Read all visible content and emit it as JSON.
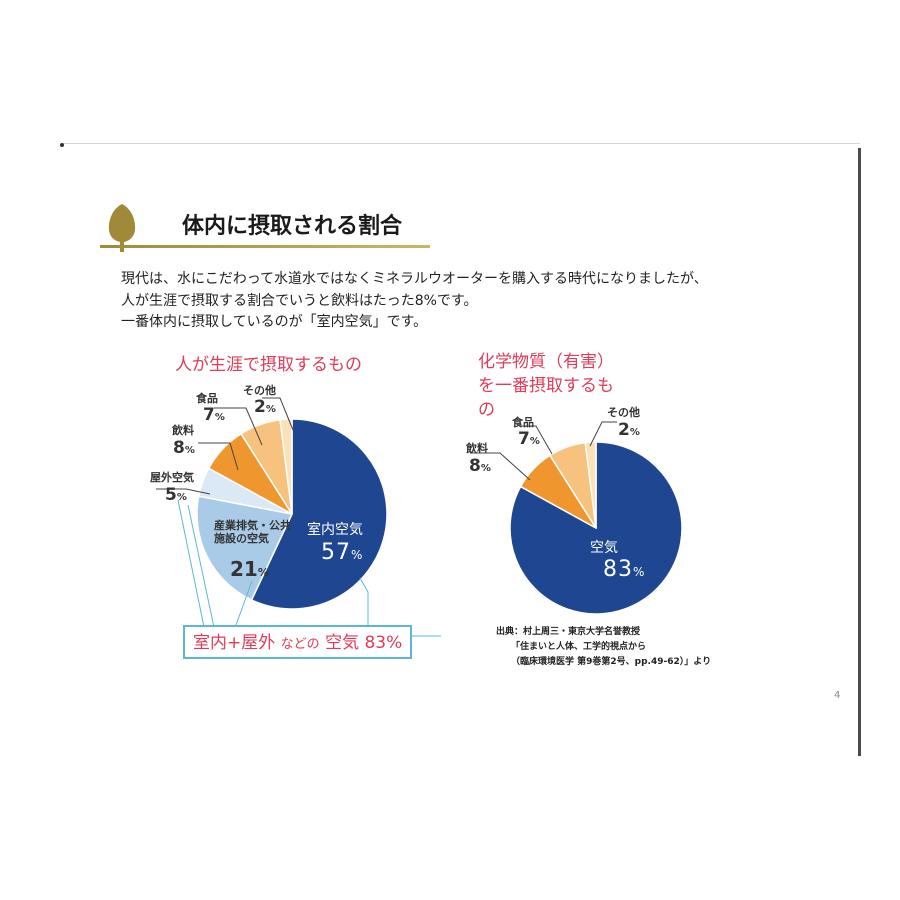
{
  "slide": {
    "title": "体内に摂取される割合",
    "body_lines": [
      "現代は、水にこだわって水道水ではなくミネラルウオーターを購入する時代になりましたが、",
      "人が生涯で摂取する割合でいうと飲料はたった8%です。",
      "一番体内に摂取しているのが「室内空気」です。"
    ],
    "summary": {
      "part1": "室内+屋外",
      "part2": "などの",
      "part3": "空気 83%"
    },
    "source_lines": [
      "出典：村上周三・東京大学名誉教授",
      "「住まいと人体、工学的視点から",
      "（臨床環境医学 第9巻第2号、pp.49-62）」より"
    ],
    "page_number": "4",
    "colors": {
      "accent_red": "#e03c5a",
      "navy": "#1f4690",
      "light_blue": "#a9cbe8",
      "pale_blue": "#dbe8f5",
      "orange": "#f0962e",
      "light_orange": "#f6c27e",
      "cream": "#fbe2b6",
      "box_border": "#5bb8d4"
    }
  },
  "chart_data": [
    {
      "type": "pie",
      "title": "人が生涯で摂取するもの",
      "slices": [
        {
          "label": "室内空気",
          "value": 57,
          "unit": "%",
          "color": "#1f4690"
        },
        {
          "label": "産業排気・公共施設の空気",
          "value": 21,
          "unit": "%",
          "color": "#a9cbe8"
        },
        {
          "label": "屋外空気",
          "value": 5,
          "unit": "%",
          "color": "#dbe8f5"
        },
        {
          "label": "飲料",
          "value": 8,
          "unit": "%",
          "color": "#f0962e"
        },
        {
          "label": "食品",
          "value": 7,
          "unit": "%",
          "color": "#f6c27e"
        },
        {
          "label": "その他",
          "value": 2,
          "unit": "%",
          "color": "#fbe2b6"
        }
      ]
    },
    {
      "type": "pie",
      "title": "化学物質（有害）を一番摂取するもの",
      "slices": [
        {
          "label": "空気",
          "value": 83,
          "unit": "%",
          "color": "#1f4690"
        },
        {
          "label": "飲料",
          "value": 8,
          "unit": "%",
          "color": "#f0962e"
        },
        {
          "label": "食品",
          "value": 7,
          "unit": "%",
          "color": "#f6c27e"
        },
        {
          "label": "その他",
          "value": 2,
          "unit": "%",
          "color": "#fbe2b6"
        }
      ]
    }
  ]
}
